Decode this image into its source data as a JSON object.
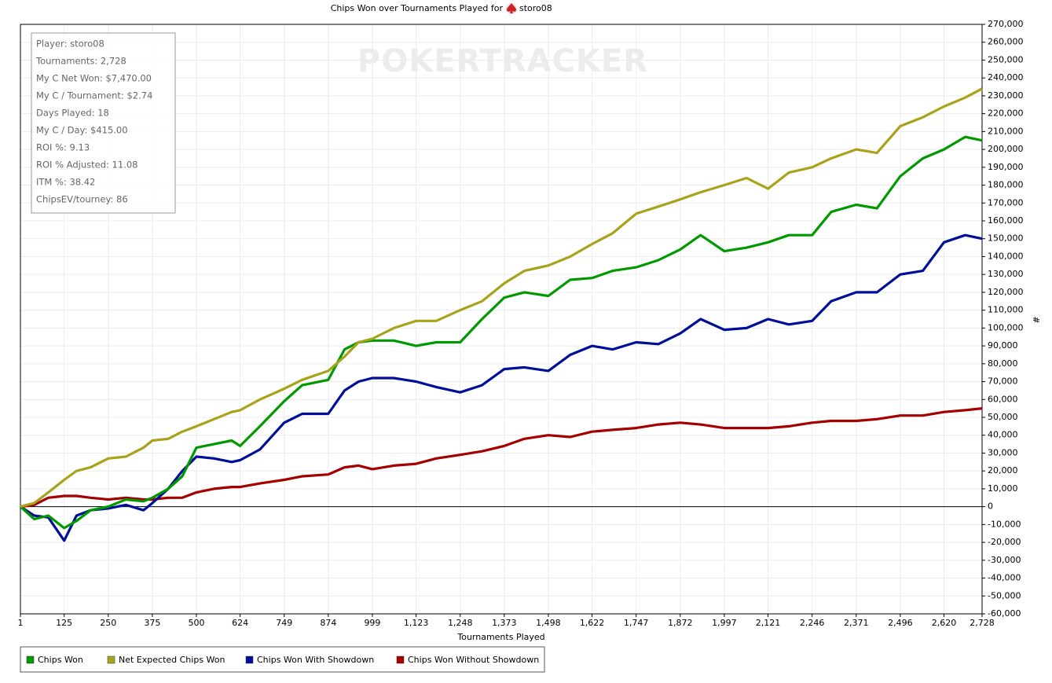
{
  "chart_data": {
    "type": "line",
    "title": "Chips Won over Tournaments Played for",
    "title_player": "storo08",
    "watermark": "POKERTRACKER",
    "x_label": "Tournaments Played",
    "y_label": "#",
    "stats": [
      "Player: storo08",
      "Tournaments: 2,728",
      "My C Net Won: $7,470.00",
      "My C / Tournament: $2.74",
      "Days Played: 18",
      "My C / Day: $415.00",
      "ROI %: 9.13",
      "ROI % Adjusted: 11.08",
      "ITM %: 38.42",
      "ChipsEV/tourney: 86"
    ],
    "x": [
      1,
      40,
      80,
      125,
      160,
      200,
      250,
      300,
      350,
      375,
      420,
      460,
      500,
      550,
      600,
      624,
      680,
      749,
      800,
      874,
      920,
      960,
      999,
      1060,
      1123,
      1180,
      1248,
      1310,
      1373,
      1430,
      1498,
      1560,
      1622,
      1680,
      1747,
      1810,
      1872,
      1930,
      1997,
      2060,
      2121,
      2180,
      2246,
      2300,
      2371,
      2430,
      2496,
      2560,
      2620,
      2680,
      2728
    ],
    "series": [
      {
        "name": "Chips Won",
        "color": "#009a00",
        "values": [
          0,
          -7000,
          -5000,
          -12000,
          -8000,
          -2000,
          0,
          4000,
          3000,
          5000,
          10000,
          17000,
          33000,
          35000,
          37000,
          34000,
          45000,
          59000,
          68000,
          71000,
          88000,
          92000,
          93000,
          93000,
          90000,
          92000,
          92000,
          105000,
          117000,
          120000,
          118000,
          127000,
          128000,
          132000,
          134000,
          138000,
          144000,
          152000,
          143000,
          145000,
          148000,
          152000,
          152000,
          165000,
          169000,
          167000,
          185000,
          195000,
          200000,
          207000,
          205000
        ]
      },
      {
        "name": "Net Expected Chips Won",
        "color": "#a8a31a",
        "values": [
          0,
          2000,
          8000,
          15000,
          20000,
          22000,
          27000,
          28000,
          33000,
          37000,
          38000,
          42000,
          45000,
          49000,
          53000,
          54000,
          60000,
          66000,
          71000,
          76000,
          84000,
          92000,
          94000,
          100000,
          104000,
          104000,
          110000,
          115000,
          125000,
          132000,
          135000,
          140000,
          147000,
          153000,
          164000,
          168000,
          172000,
          176000,
          180000,
          184000,
          178000,
          187000,
          190000,
          195000,
          200000,
          198000,
          213000,
          218000,
          224000,
          229000,
          234000
        ]
      },
      {
        "name": "Chips Won With Showdown",
        "color": "#000f99",
        "values": [
          0,
          -5000,
          -6000,
          -19000,
          -5000,
          -2000,
          -1000,
          1000,
          -2000,
          2000,
          10000,
          20000,
          28000,
          27000,
          25000,
          26000,
          32000,
          47000,
          52000,
          52000,
          65000,
          70000,
          72000,
          72000,
          70000,
          67000,
          64000,
          68000,
          77000,
          78000,
          76000,
          85000,
          90000,
          88000,
          92000,
          91000,
          97000,
          105000,
          99000,
          100000,
          105000,
          102000,
          104000,
          115000,
          120000,
          120000,
          130000,
          132000,
          148000,
          152000,
          150000
        ]
      },
      {
        "name": "Chips Won Without Showdown",
        "color": "#a50000",
        "values": [
          0,
          1000,
          5000,
          6000,
          6000,
          5000,
          4000,
          5000,
          4000,
          4000,
          5000,
          5000,
          8000,
          10000,
          11000,
          11000,
          13000,
          15000,
          17000,
          18000,
          22000,
          23000,
          21000,
          23000,
          24000,
          27000,
          29000,
          31000,
          34000,
          38000,
          40000,
          39000,
          42000,
          43000,
          44000,
          46000,
          47000,
          46000,
          44000,
          44000,
          44000,
          45000,
          47000,
          48000,
          48000,
          49000,
          51000,
          51000,
          53000,
          54000,
          55000
        ]
      }
    ],
    "xlim": [
      1,
      2728
    ],
    "xticks": [
      1,
      125,
      250,
      375,
      500,
      624,
      749,
      874,
      999,
      {
        "value": 1123,
        "label": "1,123"
      },
      {
        "value": 1248,
        "label": "1,248"
      },
      {
        "value": 1373,
        "label": "1,373"
      },
      {
        "value": 1498,
        "label": "1,498"
      },
      {
        "value": 1622,
        "label": "1,622"
      },
      {
        "value": 1747,
        "label": "1,747"
      },
      {
        "value": 1872,
        "label": "1,872"
      },
      {
        "value": 1997,
        "label": "1,997"
      },
      {
        "value": 2121,
        "label": "2,121"
      },
      {
        "value": 2246,
        "label": "2,246"
      },
      {
        "value": 2371,
        "label": "2,371"
      },
      {
        "value": 2496,
        "label": "2,496"
      },
      {
        "value": 2620,
        "label": "2,620"
      },
      {
        "value": 2728,
        "label": "2,728"
      }
    ],
    "ylim": [
      -60000,
      270000
    ],
    "yticks": [
      {
        "value": -60000,
        "label": "-60,000"
      },
      {
        "value": -50000,
        "label": "-50,000"
      },
      {
        "value": -40000,
        "label": "-40,000"
      },
      {
        "value": -30000,
        "label": "-30,000"
      },
      {
        "value": -20000,
        "label": "-20,000"
      },
      {
        "value": -10000,
        "label": "-10,000"
      },
      0,
      {
        "value": 10000,
        "label": "10,000"
      },
      {
        "value": 20000,
        "label": "20,000"
      },
      {
        "value": 30000,
        "label": "30,000"
      },
      {
        "value": 40000,
        "label": "40,000"
      },
      {
        "value": 50000,
        "label": "50,000"
      },
      {
        "value": 60000,
        "label": "60,000"
      },
      {
        "value": 70000,
        "label": "70,000"
      },
      {
        "value": 80000,
        "label": "80,000"
      },
      {
        "value": 90000,
        "label": "90,000"
      },
      {
        "value": 100000,
        "label": "100,000"
      },
      {
        "value": 110000,
        "label": "110,000"
      },
      {
        "value": 120000,
        "label": "120,000"
      },
      {
        "value": 130000,
        "label": "130,000"
      },
      {
        "value": 140000,
        "label": "140,000"
      },
      {
        "value": 150000,
        "label": "150,000"
      },
      {
        "value": 160000,
        "label": "160,000"
      },
      {
        "value": 170000,
        "label": "170,000"
      },
      {
        "value": 180000,
        "label": "180,000"
      },
      {
        "value": 190000,
        "label": "190,000"
      },
      {
        "value": 200000,
        "label": "200,000"
      },
      {
        "value": 210000,
        "label": "210,000"
      },
      {
        "value": 220000,
        "label": "220,000"
      },
      {
        "value": 230000,
        "label": "230,000"
      },
      {
        "value": 240000,
        "label": "240,000"
      },
      {
        "value": 250000,
        "label": "250,000"
      },
      {
        "value": 260000,
        "label": "260,000"
      },
      {
        "value": 270000,
        "label": "270,000"
      }
    ],
    "grid": true,
    "y_axis_side": "right",
    "legend": "bottom-left"
  }
}
